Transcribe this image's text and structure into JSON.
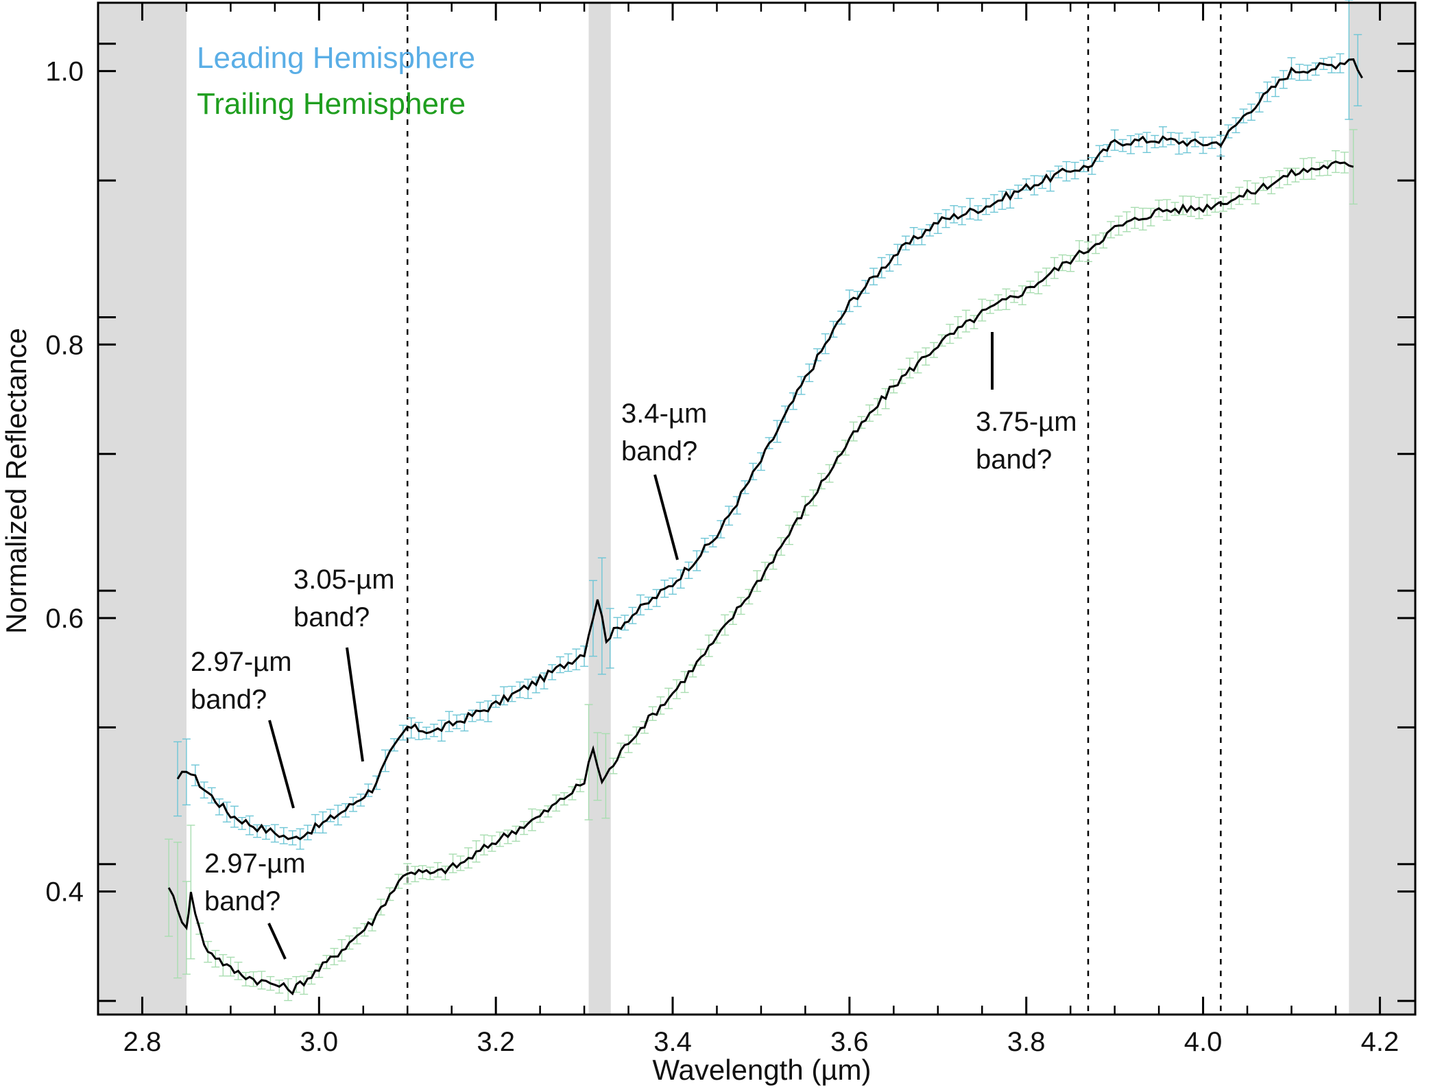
{
  "chart_data": {
    "type": "line",
    "xlabel": "Wavelength (µm)",
    "ylabel": "Normalized Reflectance",
    "xlim": [
      2.75,
      4.24
    ],
    "ylim": [
      0.31,
      1.05
    ],
    "x_ticks": [
      2.8,
      3.0,
      3.2,
      3.4,
      3.6,
      3.8,
      4.0,
      4.2
    ],
    "x_tick_labels": [
      "2.8",
      "3.0",
      "3.2",
      "3.4",
      "3.6",
      "3.8",
      "4.0",
      "4.2"
    ],
    "y_ticks": [
      0.4,
      0.6,
      0.8,
      1.0
    ],
    "y_tick_labels": [
      "0.4",
      "0.6",
      "0.8",
      "1.0"
    ],
    "grid": false,
    "legend_placement": "top-left",
    "shaded_regions": [
      [
        2.75,
        2.85
      ],
      [
        3.305,
        3.33
      ],
      [
        4.165,
        4.24
      ]
    ],
    "vertical_dashed_lines": [
      3.1,
      3.87,
      4.02
    ],
    "series": [
      {
        "name": "Leading Hemisphere",
        "color": "#5aaee6",
        "error_color": "#6ec6d6",
        "line_color": "#000000",
        "points": [
          [
            2.84,
            0.48
          ],
          [
            2.85,
            0.49
          ],
          [
            2.87,
            0.475
          ],
          [
            2.9,
            0.456
          ],
          [
            2.93,
            0.447
          ],
          [
            2.95,
            0.443
          ],
          [
            2.97,
            0.438
          ],
          [
            3.0,
            0.448
          ],
          [
            3.03,
            0.46
          ],
          [
            3.06,
            0.475
          ],
          [
            3.08,
            0.5
          ],
          [
            3.1,
            0.52
          ],
          [
            3.13,
            0.517
          ],
          [
            3.16,
            0.525
          ],
          [
            3.2,
            0.537
          ],
          [
            3.25,
            0.555
          ],
          [
            3.3,
            0.575
          ],
          [
            3.315,
            0.615
          ],
          [
            3.325,
            0.585
          ],
          [
            3.35,
            0.6
          ],
          [
            3.4,
            0.625
          ],
          [
            3.45,
            0.66
          ],
          [
            3.5,
            0.715
          ],
          [
            3.55,
            0.775
          ],
          [
            3.6,
            0.83
          ],
          [
            3.65,
            0.865
          ],
          [
            3.7,
            0.89
          ],
          [
            3.75,
            0.9
          ],
          [
            3.8,
            0.915
          ],
          [
            3.85,
            0.928
          ],
          [
            3.87,
            0.93
          ],
          [
            3.9,
            0.948
          ],
          [
            3.95,
            0.95
          ],
          [
            4.0,
            0.947
          ],
          [
            4.02,
            0.948
          ],
          [
            4.05,
            0.97
          ],
          [
            4.1,
            1.0
          ],
          [
            4.15,
            1.005
          ],
          [
            4.17,
            1.01
          ],
          [
            4.18,
            0.995
          ]
        ]
      },
      {
        "name": "Trailing Hemisphere",
        "color": "#1f9e1f",
        "error_color": "#a8ddb0",
        "line_color": "#000000",
        "points": [
          [
            2.83,
            0.405
          ],
          [
            2.84,
            0.385
          ],
          [
            2.85,
            0.375
          ],
          [
            2.855,
            0.398
          ],
          [
            2.87,
            0.36
          ],
          [
            2.9,
            0.343
          ],
          [
            2.93,
            0.335
          ],
          [
            2.95,
            0.332
          ],
          [
            2.97,
            0.328
          ],
          [
            3.0,
            0.343
          ],
          [
            3.03,
            0.36
          ],
          [
            3.06,
            0.378
          ],
          [
            3.08,
            0.398
          ],
          [
            3.1,
            0.415
          ],
          [
            3.13,
            0.413
          ],
          [
            3.16,
            0.42
          ],
          [
            3.2,
            0.437
          ],
          [
            3.25,
            0.455
          ],
          [
            3.3,
            0.48
          ],
          [
            3.31,
            0.505
          ],
          [
            3.32,
            0.48
          ],
          [
            3.35,
            0.51
          ],
          [
            3.4,
            0.545
          ],
          [
            3.45,
            0.585
          ],
          [
            3.5,
            0.63
          ],
          [
            3.55,
            0.68
          ],
          [
            3.6,
            0.73
          ],
          [
            3.65,
            0.77
          ],
          [
            3.7,
            0.8
          ],
          [
            3.75,
            0.823
          ],
          [
            3.8,
            0.84
          ],
          [
            3.85,
            0.862
          ],
          [
            3.87,
            0.87
          ],
          [
            3.9,
            0.885
          ],
          [
            3.95,
            0.898
          ],
          [
            4.0,
            0.9
          ],
          [
            4.05,
            0.91
          ],
          [
            4.1,
            0.925
          ],
          [
            4.15,
            0.932
          ],
          [
            4.17,
            0.93
          ]
        ]
      }
    ],
    "annotations": [
      {
        "lines": [
          "2.97-µm",
          "band?"
        ],
        "x": 2.97,
        "y": 0.438,
        "series": "Leading Hemisphere"
      },
      {
        "lines": [
          "3.05-µm",
          "band?"
        ],
        "x": 3.05,
        "y": 0.475,
        "series": "Leading Hemisphere"
      },
      {
        "lines": [
          "3.4-µm",
          "band?"
        ],
        "x": 3.4,
        "y": 0.625,
        "series": "Leading Hemisphere"
      },
      {
        "lines": [
          "3.75-µm",
          "band?"
        ],
        "x": 3.75,
        "y": 0.823,
        "series": "Trailing Hemisphere"
      },
      {
        "lines": [
          "2.97-µm",
          "band?"
        ],
        "x": 2.97,
        "y": 0.328,
        "series": "Trailing Hemisphere"
      }
    ]
  }
}
